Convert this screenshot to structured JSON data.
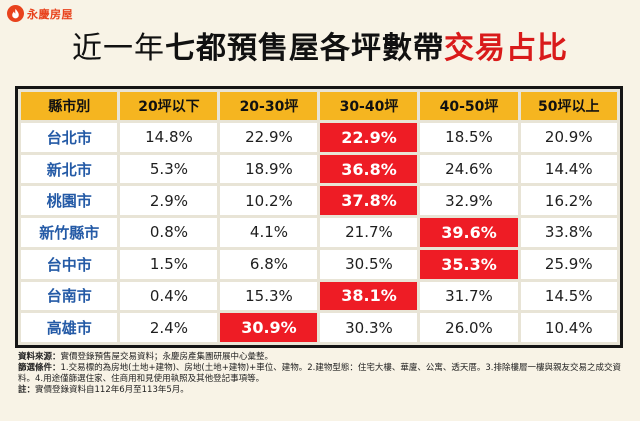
{
  "brand": {
    "name": "永慶房屋",
    "color": "#e8421c",
    "icon": "flame-logo-icon"
  },
  "title": {
    "part1": "近一年",
    "part2": "七都預售屋各坪數帶",
    "part3": "交易占比"
  },
  "colors": {
    "header_bg": "#f5b520",
    "highlight_bg": "#ee1c25",
    "city_text": "#245aa6"
  },
  "table": {
    "headers": [
      "縣市別",
      "20坪以下",
      "20-30坪",
      "30-40坪",
      "40-50坪",
      "50坪以上"
    ],
    "rows": [
      {
        "city": "台北市",
        "values": [
          "14.8%",
          "22.9%",
          "22.9%",
          "18.5%",
          "20.9%"
        ],
        "highlight": 2
      },
      {
        "city": "新北市",
        "values": [
          "5.3%",
          "18.9%",
          "36.8%",
          "24.6%",
          "14.4%"
        ],
        "highlight": 2
      },
      {
        "city": "桃園市",
        "values": [
          "2.9%",
          "10.2%",
          "37.8%",
          "32.9%",
          "16.2%"
        ],
        "highlight": 2
      },
      {
        "city": "新竹縣市",
        "values": [
          "0.8%",
          "4.1%",
          "21.7%",
          "39.6%",
          "33.8%"
        ],
        "highlight": 3
      },
      {
        "city": "台中市",
        "values": [
          "1.5%",
          "6.8%",
          "30.5%",
          "35.3%",
          "25.9%"
        ],
        "highlight": 3
      },
      {
        "city": "台南市",
        "values": [
          "0.4%",
          "15.3%",
          "38.1%",
          "31.7%",
          "14.5%"
        ],
        "highlight": 2
      },
      {
        "city": "高雄市",
        "values": [
          "2.4%",
          "30.9%",
          "30.3%",
          "26.0%",
          "10.4%"
        ],
        "highlight": 1
      }
    ]
  },
  "notes": {
    "source_label": "資料來源：",
    "source_text": "實價登錄預售屋交易資料；永慶房產集團研展中心彙整。",
    "filter_label": "篩選條件：",
    "filter_text": "1.交易標的為房地(土地+建物)、房地(土地+建物)+車位、建物。2.建物型態：住宅大樓、華廈、公寓、透天厝。3.排除樓層一樓與親友交易之成交資料。4.用途僅篩選住家、住商用和見使用執照及其他登記事項等。",
    "note_label": "註：",
    "note_text": "實價登錄資料自112年6月至113年5月。"
  }
}
